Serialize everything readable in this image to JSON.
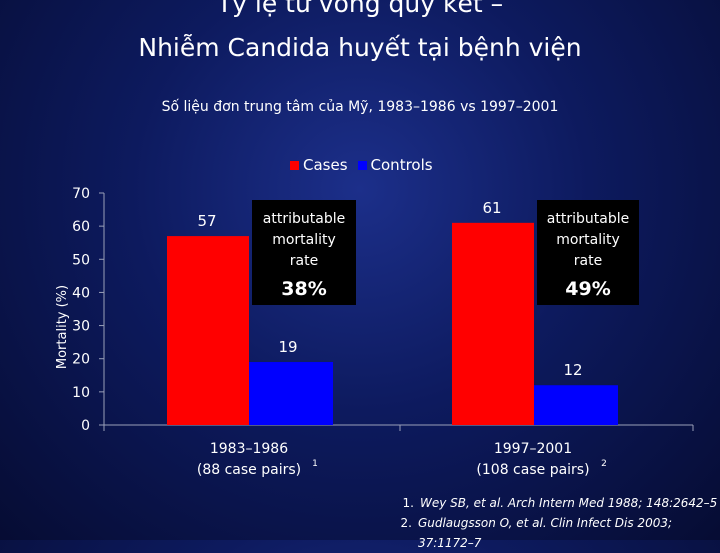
{
  "title_line1": "Tỷ lệ tử vong quy kết –",
  "title_line2": "Nhiễm Candida huyết tại bệnh viện",
  "subtitle": "Số liệu đơn trung tâm của Mỹ, 1983–1986 vs 1997–2001",
  "colors": {
    "cases": "#ff0000",
    "controls": "#0000ff",
    "box": "#000000"
  },
  "chart_data": {
    "type": "bar",
    "ylabel": "Mortality (%)",
    "ylim": [
      0,
      70
    ],
    "yticks": [
      0,
      10,
      20,
      30,
      40,
      50,
      60,
      70
    ],
    "categories": [
      {
        "line1": "1983–1986",
        "line2": "(88 case pairs)",
        "sup": "1"
      },
      {
        "line1": "1997–2001",
        "line2": "(108 case pairs)",
        "sup": "2"
      }
    ],
    "series": [
      {
        "name": "Cases",
        "values": [
          57,
          61
        ],
        "labels": [
          "57",
          "61"
        ]
      },
      {
        "name": "Controls",
        "values": [
          19,
          12
        ],
        "labels": [
          "19",
          "12"
        ]
      }
    ],
    "annotations": [
      {
        "lines": [
          "attributable",
          "mortality",
          "rate"
        ],
        "value": "38%"
      },
      {
        "lines": [
          "attributable",
          "mortality",
          "rate"
        ],
        "value": "49%"
      }
    ]
  },
  "references": [
    {
      "num": "1.",
      "text": "Wey SB, et al. Arch Intern Med 1988; 148:2642–5"
    },
    {
      "num": "2.",
      "text": "Gudlaugsson O, et al. Clin Infect Dis 2003; 37:1172–7"
    }
  ]
}
